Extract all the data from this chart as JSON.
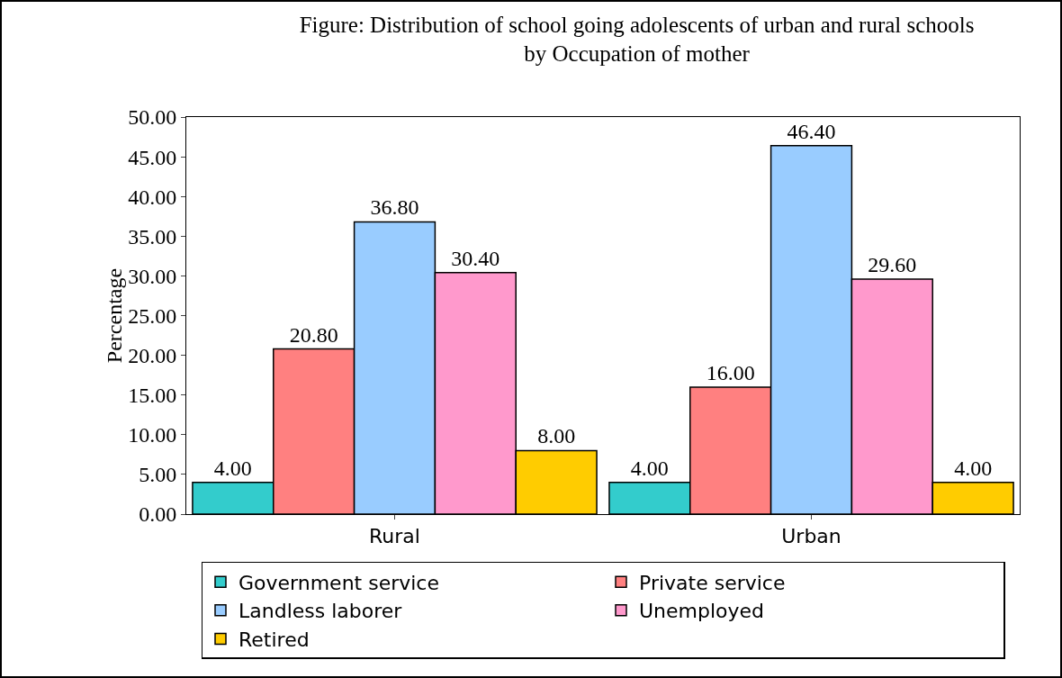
{
  "chart_data": {
    "type": "bar",
    "title": "Figure: Distribution of school going adolescents of urban and rural schools\nby Occupation of mother",
    "ylabel": "Percentage",
    "categories": [
      "Rural",
      "Urban"
    ],
    "series": [
      {
        "name": "Government service",
        "color": "#33cccc",
        "values": [
          4,
          4
        ],
        "value_labels": [
          "4.00",
          "4.00"
        ]
      },
      {
        "name": "Private service",
        "color": "#ff8080",
        "values": [
          20.8,
          16
        ],
        "value_labels": [
          "20.80",
          "16.00"
        ]
      },
      {
        "name": "Landless laborer",
        "color": "#99ccff",
        "values": [
          36.8,
          46.4
        ],
        "value_labels": [
          "36.80",
          "46.40"
        ]
      },
      {
        "name": "Unemployed",
        "color": "#ff99cc",
        "values": [
          30.4,
          29.6
        ],
        "value_labels": [
          "30.40",
          "29.60"
        ]
      },
      {
        "name": "Retired",
        "color": "#ffcc00",
        "values": [
          8,
          4
        ],
        "value_labels": [
          "8.00",
          "4.00"
        ]
      }
    ],
    "ylim": [
      0,
      50
    ],
    "yticks": [
      {
        "value": 0,
        "label": "0.00"
      },
      {
        "value": 5,
        "label": "5.00"
      },
      {
        "value": 10,
        "label": "10.00"
      },
      {
        "value": 15,
        "label": "15.00"
      },
      {
        "value": 20,
        "label": "20.00"
      },
      {
        "value": 25,
        "label": "25.00"
      },
      {
        "value": 30,
        "label": "30.00"
      },
      {
        "value": 35,
        "label": "35.00"
      },
      {
        "value": 40,
        "label": "40.00"
      },
      {
        "value": 45,
        "label": "45.00"
      },
      {
        "value": 50,
        "label": "50.00"
      }
    ],
    "grid": false,
    "legend": "bottom"
  }
}
